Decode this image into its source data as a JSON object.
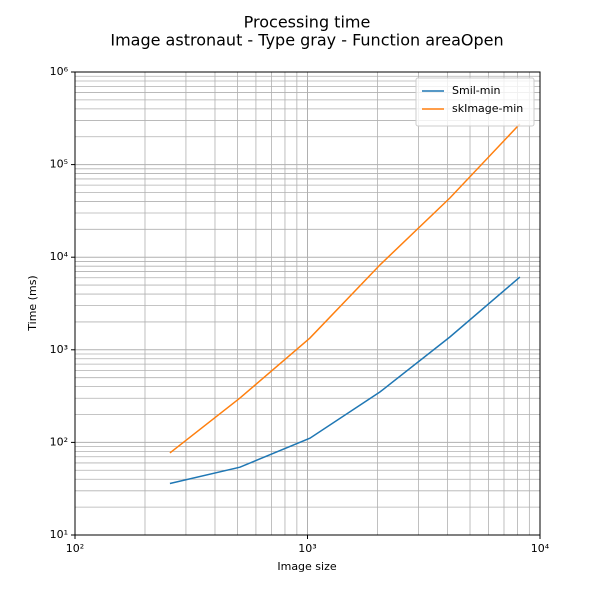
{
  "chart_data": {
    "type": "line",
    "title": "Processing time",
    "subtitle": "Image astronaut - Type gray - Function areaOpen",
    "x_label": "Image size",
    "y_label": "Time (ms)",
    "x": [
      256,
      512,
      1024,
      2048,
      4096,
      8192
    ],
    "series": [
      {
        "name": "Smil-min",
        "color": "#1f77b4",
        "values": [
          36,
          54,
          111,
          350,
          1375,
          6100
        ]
      },
      {
        "name": "skImage-min",
        "color": "#ff7f0e",
        "values": [
          77,
          301,
          1340,
          8240,
          43600,
          275000
        ]
      }
    ],
    "log_x": true,
    "log_y": true,
    "xlim": [
      100,
      10000
    ],
    "xticks": [
      {
        "value": 100,
        "label": "10²"
      },
      {
        "value": 1000,
        "label": "10³"
      },
      {
        "value": 10000,
        "label": "10⁴"
      }
    ],
    "xminor": [
      200,
      300,
      400,
      500,
      600,
      700,
      800,
      900,
      2000,
      3000,
      4000,
      5000,
      6000,
      7000,
      8000,
      9000
    ],
    "ylim": [
      10,
      1000000
    ],
    "yticks": [
      {
        "value": 10,
        "label": "10¹"
      },
      {
        "value": 100,
        "label": "10²"
      },
      {
        "value": 1000,
        "label": "10³"
      },
      {
        "value": 10000,
        "label": "10⁴"
      },
      {
        "value": 100000,
        "label": "10⁵"
      },
      {
        "value": 1000000,
        "label": "10⁶"
      }
    ],
    "yminor": [
      20,
      30,
      40,
      50,
      60,
      70,
      80,
      90,
      200,
      300,
      400,
      500,
      600,
      700,
      800,
      900,
      2000,
      3000,
      4000,
      5000,
      6000,
      7000,
      8000,
      9000,
      20000,
      30000,
      40000,
      50000,
      60000,
      70000,
      80000,
      90000,
      200000,
      300000,
      400000,
      500000,
      600000,
      700000,
      800000,
      900000
    ],
    "grid": true,
    "legend": "upper right"
  }
}
